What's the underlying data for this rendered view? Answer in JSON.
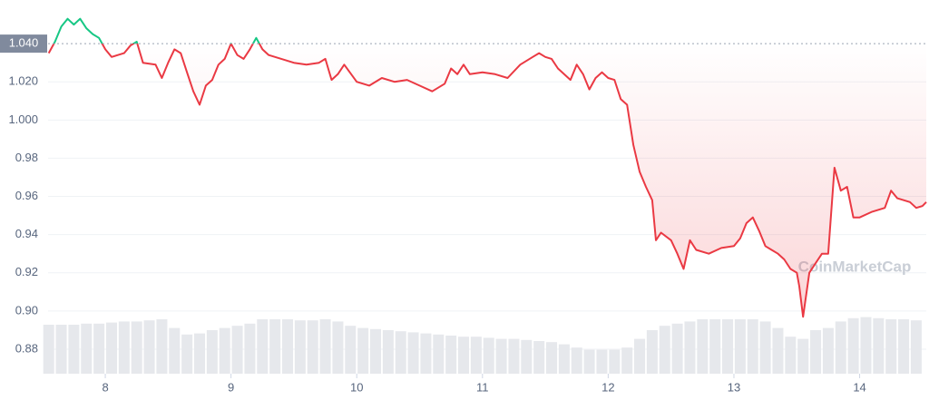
{
  "chart_data": {
    "type": "line",
    "watermark": "CoinMarketCap",
    "baseline": {
      "value": 1.04,
      "label": "1.040"
    },
    "above_color": "#16c784",
    "below_color": "#ea3943",
    "grid": true,
    "xlim": [
      7.545,
      14.53
    ],
    "xticks": [
      8,
      9,
      10,
      11,
      12,
      13,
      14
    ],
    "ylim": [
      0.87,
      1.06
    ],
    "yticks": [
      0.88,
      {
        "value": 0.9,
        "label": "0.90"
      },
      0.92,
      0.94,
      0.96,
      0.98,
      {
        "value": 1,
        "label": "1.000"
      },
      {
        "value": 1.02,
        "label": "1.020"
      }
    ],
    "x": [
      7.55,
      7.6,
      7.65,
      7.7,
      7.75,
      7.8,
      7.85,
      7.9,
      7.95,
      8.0,
      8.05,
      8.1,
      8.15,
      8.2,
      8.25,
      8.3,
      8.4,
      8.45,
      8.5,
      8.55,
      8.6,
      8.65,
      8.7,
      8.75,
      8.8,
      8.85,
      8.9,
      8.95,
      9.0,
      9.05,
      9.1,
      9.15,
      9.2,
      9.25,
      9.3,
      9.4,
      9.5,
      9.6,
      9.7,
      9.75,
      9.8,
      9.85,
      9.9,
      10.0,
      10.1,
      10.2,
      10.3,
      10.4,
      10.5,
      10.6,
      10.7,
      10.75,
      10.8,
      10.85,
      10.9,
      11.0,
      11.1,
      11.2,
      11.3,
      11.4,
      11.45,
      11.5,
      11.55,
      11.6,
      11.7,
      11.75,
      11.8,
      11.85,
      11.9,
      11.95,
      12.0,
      12.05,
      12.1,
      12.15,
      12.2,
      12.25,
      12.3,
      12.35,
      12.38,
      12.42,
      12.5,
      12.55,
      12.6,
      12.65,
      12.7,
      12.8,
      12.9,
      13.0,
      13.05,
      13.1,
      13.15,
      13.2,
      13.25,
      13.3,
      13.35,
      13.4,
      13.45,
      13.5,
      13.52,
      13.55,
      13.6,
      13.65,
      13.7,
      13.75,
      13.8,
      13.85,
      13.9,
      13.95,
      14.0,
      14.1,
      14.2,
      14.25,
      14.3,
      14.4,
      14.45,
      14.5,
      14.53
    ],
    "values": [
      1.035,
      1.041,
      1.049,
      1.053,
      1.05,
      1.053,
      1.048,
      1.045,
      1.043,
      1.037,
      1.033,
      1.034,
      1.035,
      1.039,
      1.041,
      1.03,
      1.029,
      1.022,
      1.03,
      1.037,
      1.035,
      1.025,
      1.015,
      1.008,
      1.018,
      1.021,
      1.029,
      1.032,
      1.04,
      1.034,
      1.032,
      1.037,
      1.043,
      1.037,
      1.034,
      1.032,
      1.03,
      1.029,
      1.03,
      1.032,
      1.021,
      1.024,
      1.029,
      1.02,
      1.018,
      1.022,
      1.02,
      1.021,
      1.018,
      1.015,
      1.019,
      1.027,
      1.024,
      1.029,
      1.024,
      1.025,
      1.024,
      1.022,
      1.029,
      1.033,
      1.035,
      1.033,
      1.032,
      1.027,
      1.021,
      1.029,
      1.024,
      1.016,
      1.022,
      1.025,
      1.022,
      1.021,
      1.011,
      1.008,
      0.987,
      0.973,
      0.965,
      0.958,
      0.937,
      0.941,
      0.937,
      0.93,
      0.922,
      0.937,
      0.932,
      0.93,
      0.933,
      0.934,
      0.938,
      0.946,
      0.949,
      0.942,
      0.934,
      0.932,
      0.93,
      0.927,
      0.922,
      0.92,
      0.913,
      0.897,
      0.92,
      0.925,
      0.93,
      0.93,
      0.975,
      0.963,
      0.965,
      0.949,
      0.949,
      0.952,
      0.954,
      0.963,
      0.959,
      0.957,
      0.954,
      0.955,
      0.957
    ],
    "volume": {
      "color": "#e6e8ec",
      "ylim": [
        0,
        100
      ],
      "x": [
        7.55,
        7.65,
        7.75,
        7.85,
        7.95,
        8.05,
        8.15,
        8.25,
        8.35,
        8.45,
        8.55,
        8.65,
        8.75,
        8.85,
        8.95,
        9.05,
        9.15,
        9.25,
        9.35,
        9.45,
        9.55,
        9.65,
        9.75,
        9.85,
        9.95,
        10.05,
        10.15,
        10.25,
        10.35,
        10.45,
        10.55,
        10.65,
        10.75,
        10.85,
        10.95,
        11.05,
        11.15,
        11.25,
        11.35,
        11.45,
        11.55,
        11.65,
        11.75,
        11.85,
        11.95,
        12.05,
        12.15,
        12.25,
        12.35,
        12.45,
        12.55,
        12.65,
        12.75,
        12.85,
        12.95,
        13.05,
        13.15,
        13.25,
        13.35,
        13.45,
        13.55,
        13.65,
        13.75,
        13.85,
        13.95,
        14.05,
        14.15,
        14.25,
        14.35,
        14.45
      ],
      "values": [
        22.5,
        22.5,
        22.5,
        23,
        23,
        23.5,
        24,
        24,
        24.5,
        25,
        21,
        18,
        18.5,
        20,
        21,
        22,
        23,
        25,
        25,
        25,
        24.5,
        24.5,
        25,
        24,
        22,
        21,
        20.5,
        20,
        19.5,
        19,
        18.5,
        18,
        17.5,
        17,
        17,
        16.5,
        16,
        16,
        15.5,
        15,
        14.5,
        13.5,
        12,
        11,
        11,
        11,
        12,
        16,
        20,
        22,
        23,
        24,
        25,
        25,
        25,
        25,
        25,
        24,
        21,
        17,
        16,
        20,
        21,
        24,
        25.5,
        26,
        25.5,
        25,
        25,
        24.5
      ]
    }
  }
}
